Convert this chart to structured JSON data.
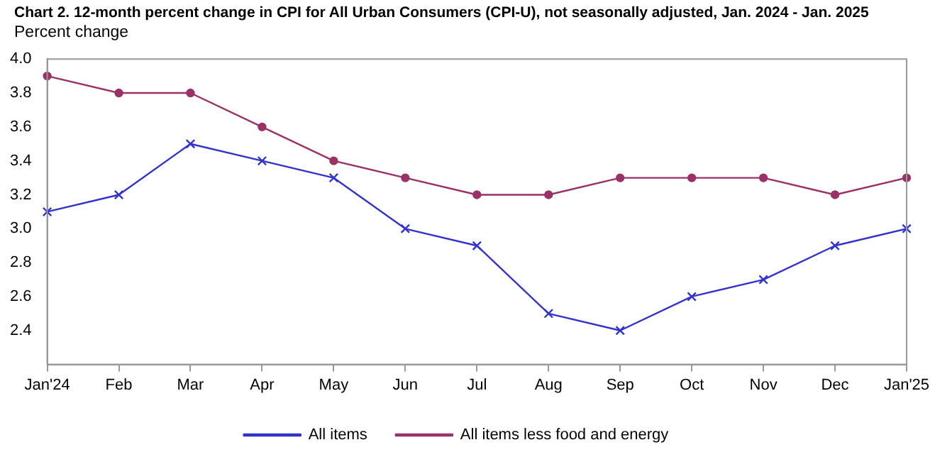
{
  "chart_data": {
    "type": "line",
    "title": "Chart 2. 12-month percent change in CPI for All Urban Consumers (CPI-U), not seasonally adjusted, Jan. 2024 - Jan. 2025",
    "ylabel": "Percent change",
    "categories": [
      "Jan'24",
      "Feb",
      "Mar",
      "Apr",
      "May",
      "Jun",
      "Jul",
      "Aug",
      "Sep",
      "Oct",
      "Nov",
      "Dec",
      "Jan'25"
    ],
    "series": [
      {
        "name": "All items",
        "color": "#3333cc",
        "marker": "cross",
        "values": [
          3.1,
          3.2,
          3.5,
          3.4,
          3.3,
          3.0,
          2.9,
          2.5,
          2.4,
          2.6,
          2.7,
          2.9,
          3.0
        ]
      },
      {
        "name": "All items less food and energy",
        "color": "#993366",
        "marker": "circle",
        "values": [
          3.9,
          3.8,
          3.8,
          3.6,
          3.4,
          3.3,
          3.2,
          3.2,
          3.3,
          3.3,
          3.3,
          3.2,
          3.3
        ]
      }
    ],
    "ylim": [
      2.2,
      4.0
    ],
    "yticks": [
      2.4,
      2.6,
      2.8,
      {
        "value": 3,
        "label": "3.0"
      },
      3.2,
      3.4,
      3.6,
      3.8,
      {
        "value": 4,
        "label": "4.0"
      }
    ],
    "grid": false,
    "legend": "bottom"
  }
}
